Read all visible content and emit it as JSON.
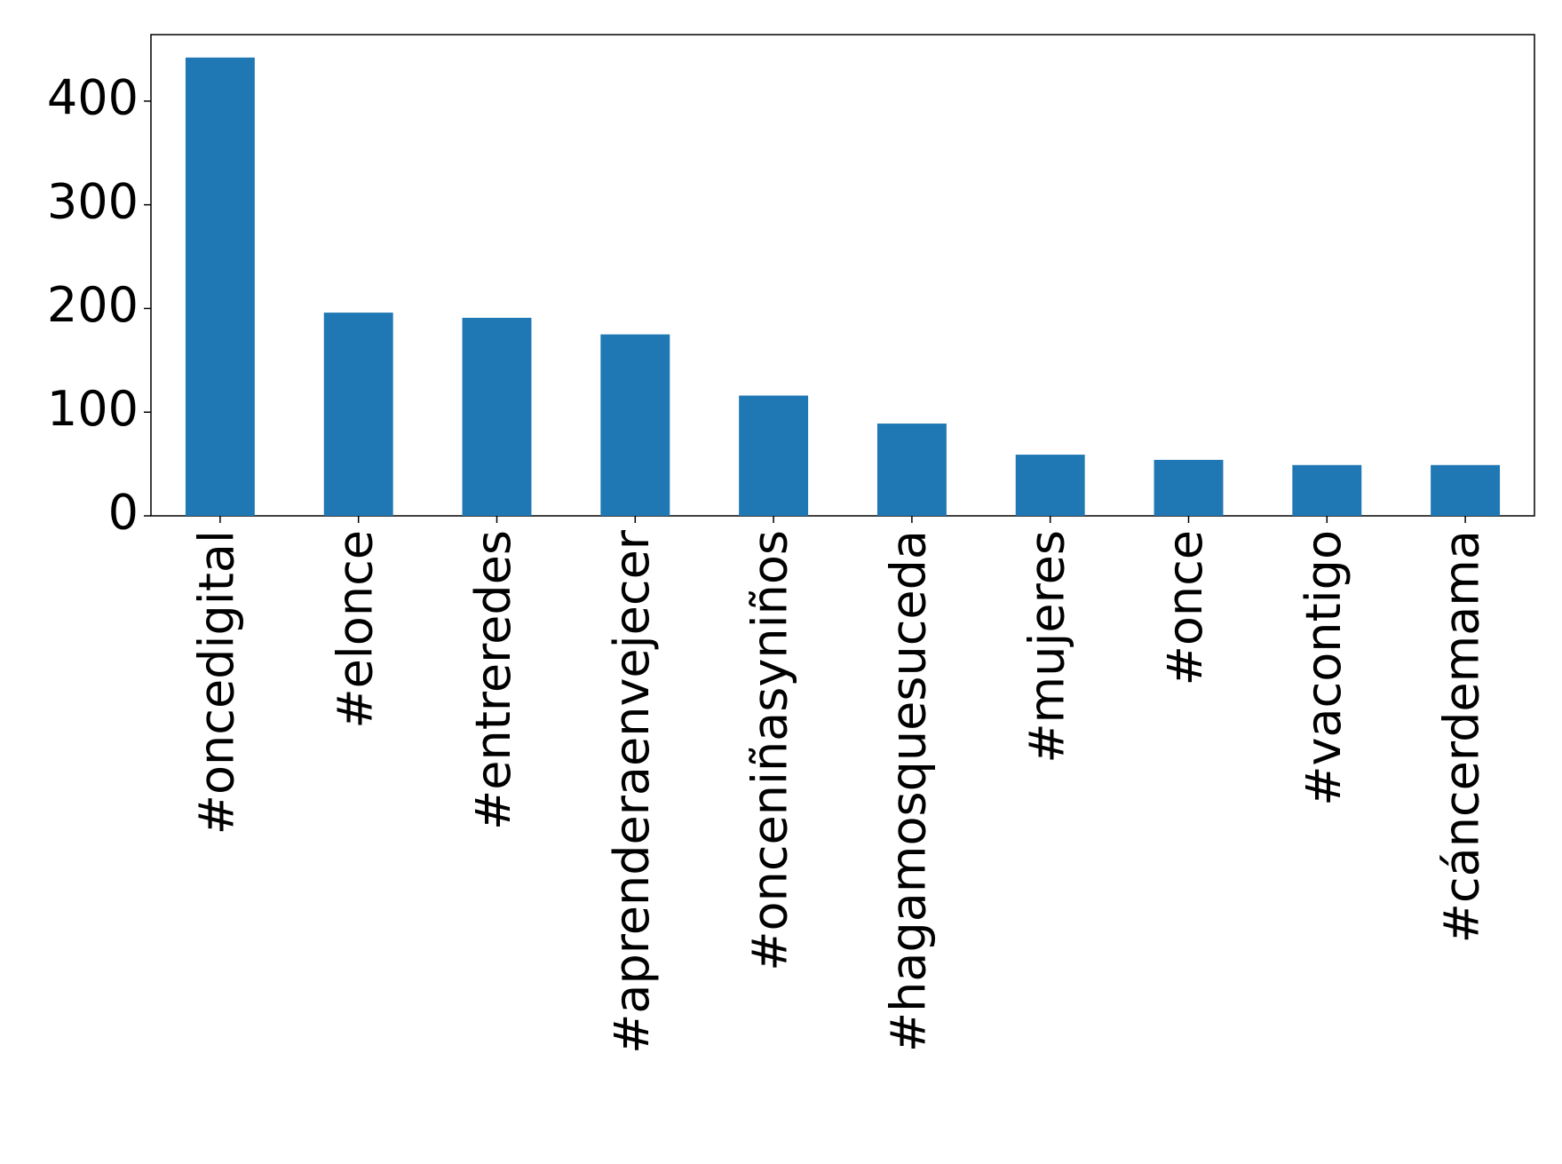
{
  "chart_data": {
    "type": "bar",
    "categories": [
      "#oncedigital",
      "#elonce",
      "#entreredes",
      "#aprenderaenvejecer",
      "#onceniñasyniños",
      "#hagamosquesuceda",
      "#mujeres",
      "#once",
      "#vacontigo",
      "#cáncerdemama"
    ],
    "values": [
      442,
      196,
      191,
      175,
      116,
      89,
      59,
      54,
      49,
      49
    ],
    "color": "#1f77b4",
    "ylim": [
      0,
      464.1
    ],
    "yticks": [
      0,
      100,
      200,
      300,
      400
    ],
    "grid": false
  }
}
